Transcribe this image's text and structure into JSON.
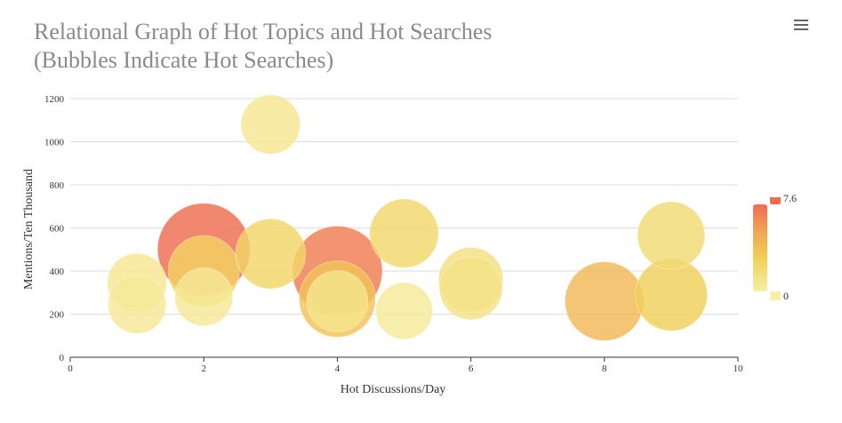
{
  "menu_icon": "hamburger-menu-icon",
  "chart_data": {
    "type": "scatter",
    "variant": "bubble",
    "title": "Relational Graph of Hot Topics and Hot Searches",
    "subtitle": "(Bubbles Indicate Hot Searches)",
    "xlabel": "Hot Discussions/Day",
    "ylabel": "Mentions/Ten Thousand",
    "xlim": [
      0,
      10
    ],
    "ylim": [
      0,
      1200
    ],
    "x_ticks": [
      "0",
      "2",
      "4",
      "6",
      "8",
      "10"
    ],
    "y_ticks": [
      "0",
      "200",
      "400",
      "600",
      "800",
      "1000",
      "1200"
    ],
    "grid": true,
    "visual_map": {
      "min": 0,
      "max": 7.6,
      "max_label": "7.6",
      "min_label": "0",
      "colors": [
        "#f6efa6",
        "#f0ce55",
        "#f2a257",
        "#ef6c4f"
      ],
      "placement": "right"
    },
    "points": [
      {
        "x": 3,
        "y": 1080,
        "size": 0.6
      },
      {
        "x": 2,
        "y": 500,
        "size": 7.6
      },
      {
        "x": 4,
        "y": 400,
        "size": 6.8
      },
      {
        "x": 2,
        "y": 400,
        "size": 2.2
      },
      {
        "x": 3,
        "y": 480,
        "size": 2.0
      },
      {
        "x": 5,
        "y": 575,
        "size": 1.8
      },
      {
        "x": 9,
        "y": 565,
        "size": 1.6
      },
      {
        "x": 1,
        "y": 345,
        "size": 0.6
      },
      {
        "x": 1,
        "y": 245,
        "size": 0.5
      },
      {
        "x": 2,
        "y": 280,
        "size": 0.5
      },
      {
        "x": 4,
        "y": 270,
        "size": 3.2
      },
      {
        "x": 4,
        "y": 260,
        "size": 0.8
      },
      {
        "x": 5,
        "y": 215,
        "size": 0.4
      },
      {
        "x": 6,
        "y": 360,
        "size": 1.2
      },
      {
        "x": 6,
        "y": 320,
        "size": 1.0
      },
      {
        "x": 8,
        "y": 260,
        "size": 3.8
      },
      {
        "x": 9,
        "y": 290,
        "size": 2.4
      }
    ]
  }
}
